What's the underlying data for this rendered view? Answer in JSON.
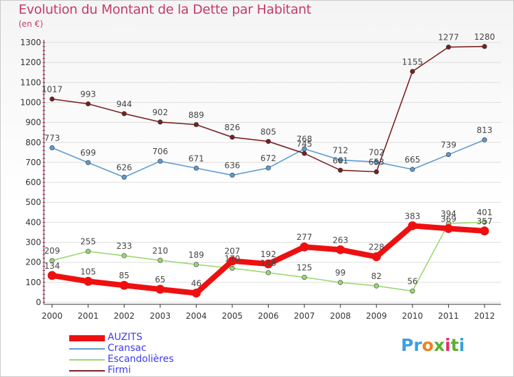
{
  "title": "Evolution du Montant de la Dette par Habitant",
  "unit": "(en €)",
  "logo_text": "Proxiti",
  "colors": {
    "title": "#c43a6a",
    "legend_text": "#3a3af0",
    "axis": "#333333",
    "grid": "#dddddd"
  },
  "chart_data": {
    "type": "line",
    "x": [
      "2000",
      "2001",
      "2002",
      "2003",
      "2004",
      "2005",
      "2006",
      "2007",
      "2008",
      "2009",
      "2010",
      "2011",
      "2012"
    ],
    "ylim": [
      0,
      1300
    ],
    "yticks": [
      0,
      100,
      200,
      300,
      400,
      500,
      600,
      700,
      800,
      900,
      1000,
      1100,
      1200,
      1300
    ],
    "grid": true,
    "legend_position": "bottom-left",
    "series": [
      {
        "name": "AUZITS",
        "color": "#ee1010",
        "emphasis": true,
        "values": [
          134,
          105,
          85,
          65,
          46,
          207,
          192,
          277,
          263,
          228,
          383,
          369,
          357
        ],
        "labels": [
          "134",
          "105",
          "85",
          "65",
          "46",
          "207",
          "192",
          "277",
          "263",
          "228",
          "383",
          "369",
          "357"
        ]
      },
      {
        "name": "Cransac",
        "color": "#5b9bd1",
        "emphasis": false,
        "values": [
          773,
          699,
          626,
          706,
          671,
          636,
          672,
          768,
          712,
          702,
          665,
          739,
          813
        ],
        "labels": [
          "773",
          "699",
          "626",
          "706",
          "671",
          "636",
          "672",
          "768",
          "712",
          "702",
          "665",
          "739",
          "813"
        ]
      },
      {
        "name": "Escandolières",
        "color": "#9ad870",
        "emphasis": false,
        "values": [
          209,
          255,
          233,
          210,
          189,
          170,
          148,
          125,
          99,
          82,
          56,
          394,
          401
        ],
        "labels": [
          "209",
          "255",
          "233",
          "210",
          "189",
          "170",
          "148",
          "125",
          "99",
          "82",
          "56",
          "394",
          "401"
        ]
      },
      {
        "name": "Firmi",
        "color": "#7a1f1f",
        "emphasis": false,
        "values": [
          1017,
          993,
          944,
          902,
          889,
          826,
          805,
          745,
          661,
          653,
          1155,
          1277,
          1280
        ],
        "labels": [
          "1017",
          "993",
          "944",
          "902",
          "889",
          "826",
          "805",
          "745",
          "661",
          "653",
          "1155",
          "1277",
          "1280"
        ]
      }
    ]
  }
}
